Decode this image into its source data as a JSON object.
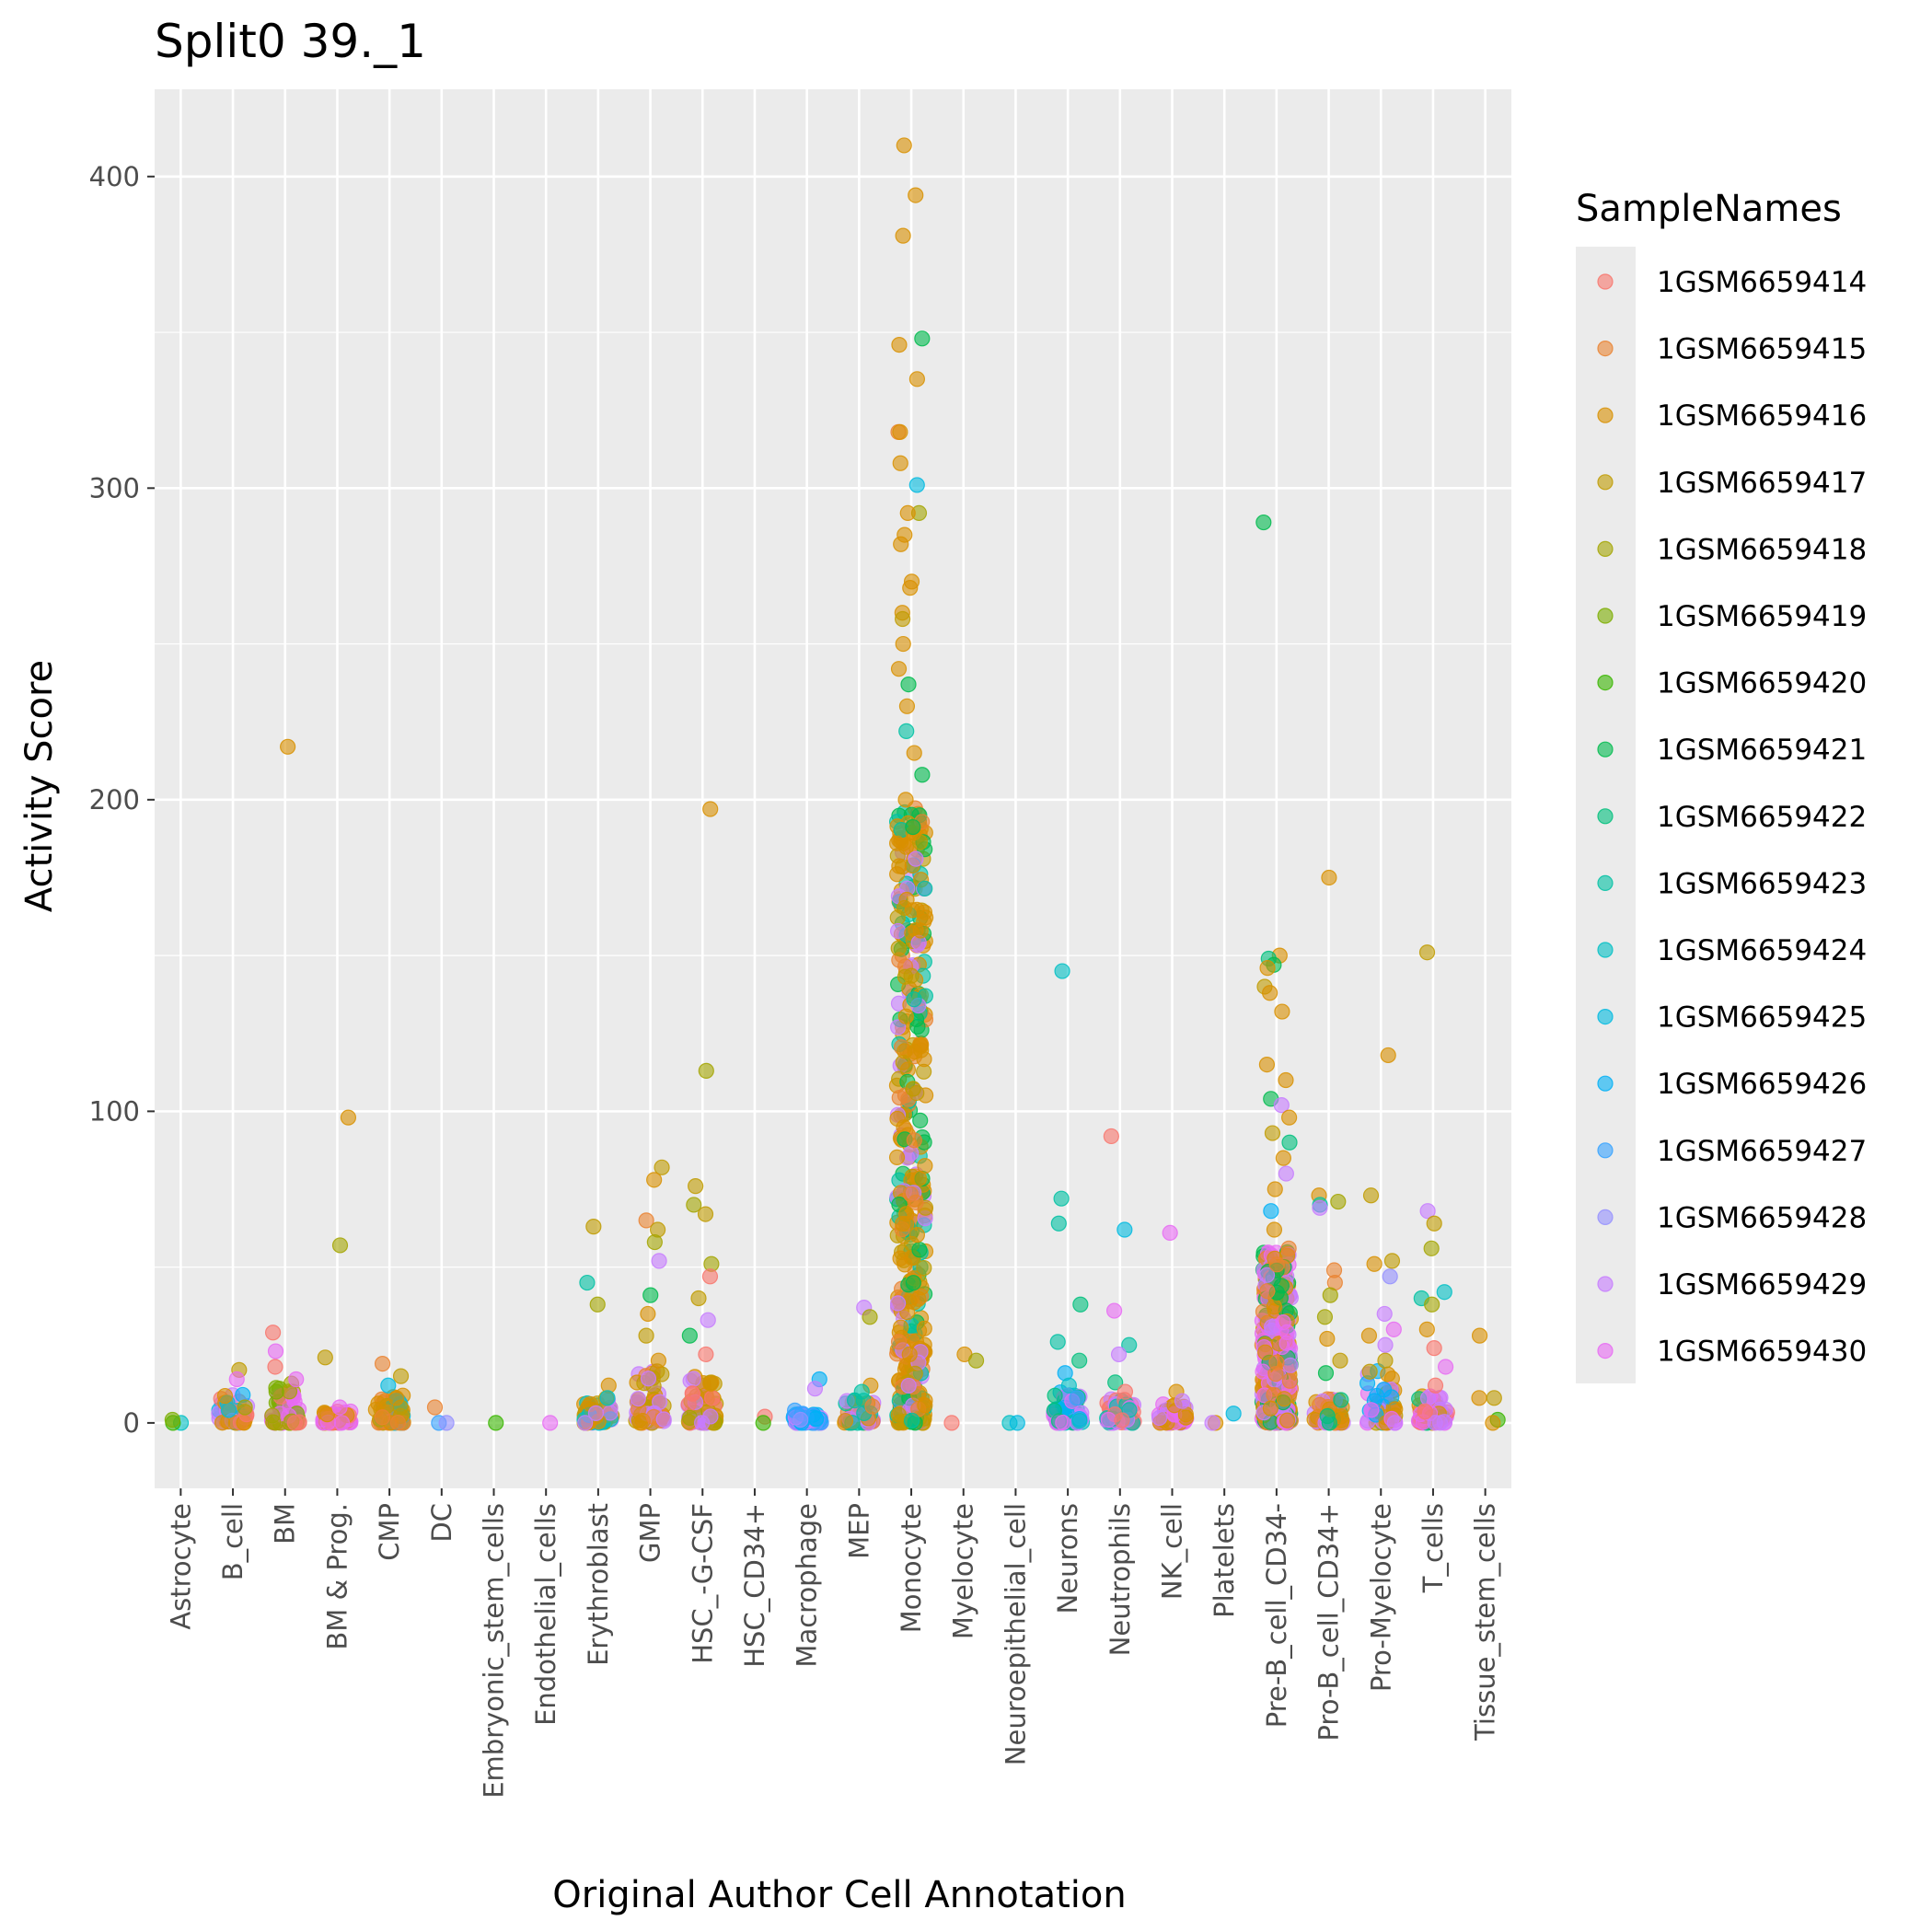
{
  "chart_data": {
    "type": "scatter",
    "title": "Split0 39._1",
    "xlabel": "Original Author Cell Annotation",
    "ylabel": "Activity Score",
    "ylim": [
      -21,
      428
    ],
    "yticks": [
      0,
      100,
      200,
      300,
      400
    ],
    "grid": true,
    "legend_position": "right",
    "legend_title": "SampleNames",
    "categories": [
      "Astrocyte",
      "B_cell",
      "BM",
      "BM & Prog.",
      "CMP",
      "DC",
      "Embryonic_stem_cells",
      "Endothelial_cells",
      "Erythroblast",
      "GMP",
      "HSC_-G-CSF",
      "HSC_CD34+",
      "Macrophage",
      "MEP",
      "Monocyte",
      "Myelocyte",
      "Neuroepithelial_cell",
      "Neurons",
      "Neutrophils",
      "NK_cell",
      "Platelets",
      "Pre-B_cell_CD34-",
      "Pro-B_cell_CD34+",
      "Pro-Myelocyte",
      "T_cells",
      "Tissue_stem_cells"
    ],
    "series": [
      {
        "name": "1GSM6659414",
        "color": "#F8766D"
      },
      {
        "name": "1GSM6659415",
        "color": "#EA8331"
      },
      {
        "name": "1GSM6659416",
        "color": "#D89000"
      },
      {
        "name": "1GSM6659417",
        "color": "#C09B00"
      },
      {
        "name": "1GSM6659418",
        "color": "#A3A500"
      },
      {
        "name": "1GSM6659419",
        "color": "#7CAE00"
      },
      {
        "name": "1GSM6659420",
        "color": "#39B600"
      },
      {
        "name": "1GSM6659421",
        "color": "#00BB4E"
      },
      {
        "name": "1GSM6659422",
        "color": "#00BF7D"
      },
      {
        "name": "1GSM6659423",
        "color": "#00C1A3"
      },
      {
        "name": "1GSM6659424",
        "color": "#00BFC4"
      },
      {
        "name": "1GSM6659425",
        "color": "#00BAE0"
      },
      {
        "name": "1GSM6659426",
        "color": "#00B0F6"
      },
      {
        "name": "1GSM6659427",
        "color": "#35A2FF"
      },
      {
        "name": "1GSM6659428",
        "color": "#9590FF"
      },
      {
        "name": "1GSM6659429",
        "color": "#C77CFF"
      },
      {
        "name": "1GSM6659430",
        "color": "#E76BF3"
      }
    ],
    "points": [
      {
        "cat": 0,
        "y": 0,
        "s": 10
      },
      {
        "cat": 0,
        "y": 0,
        "s": 6
      },
      {
        "cat": 0,
        "y": 1,
        "s": 5
      },
      {
        "cat": 1,
        "y": 17,
        "s": 3
      },
      {
        "cat": 1,
        "y": 14,
        "s": 16
      },
      {
        "cat": 1,
        "y": 9,
        "s": 12
      },
      {
        "cat": 1,
        "y": 5,
        "s": 4
      },
      {
        "cat": 2,
        "y": 217,
        "s": 2
      },
      {
        "cat": 2,
        "y": 29,
        "s": 0
      },
      {
        "cat": 2,
        "y": 23,
        "s": 16
      },
      {
        "cat": 2,
        "y": 18,
        "s": 0
      },
      {
        "cat": 2,
        "y": 14,
        "s": 16
      },
      {
        "cat": 2,
        "y": 10,
        "s": 5
      },
      {
        "cat": 3,
        "y": 98,
        "s": 2
      },
      {
        "cat": 3,
        "y": 57,
        "s": 4
      },
      {
        "cat": 3,
        "y": 21,
        "s": 3
      },
      {
        "cat": 3,
        "y": 5,
        "s": 16
      },
      {
        "cat": 4,
        "y": 19,
        "s": 1
      },
      {
        "cat": 4,
        "y": 15,
        "s": 3
      },
      {
        "cat": 4,
        "y": 12,
        "s": 11
      },
      {
        "cat": 4,
        "y": 8,
        "s": 2
      },
      {
        "cat": 5,
        "y": 5,
        "s": 1
      },
      {
        "cat": 5,
        "y": 0,
        "s": 13
      },
      {
        "cat": 5,
        "y": 0,
        "s": 14
      },
      {
        "cat": 6,
        "y": 0,
        "s": 6
      },
      {
        "cat": 7,
        "y": 0,
        "s": 16
      },
      {
        "cat": 8,
        "y": 63,
        "s": 3
      },
      {
        "cat": 8,
        "y": 45,
        "s": 9
      },
      {
        "cat": 8,
        "y": 38,
        "s": 4
      },
      {
        "cat": 8,
        "y": 12,
        "s": 2
      },
      {
        "cat": 8,
        "y": 8,
        "s": 10
      },
      {
        "cat": 9,
        "y": 82,
        "s": 3
      },
      {
        "cat": 9,
        "y": 78,
        "s": 2
      },
      {
        "cat": 9,
        "y": 65,
        "s": 1
      },
      {
        "cat": 9,
        "y": 62,
        "s": 3
      },
      {
        "cat": 9,
        "y": 58,
        "s": 4
      },
      {
        "cat": 9,
        "y": 52,
        "s": 15
      },
      {
        "cat": 9,
        "y": 41,
        "s": 7
      },
      {
        "cat": 9,
        "y": 35,
        "s": 2
      },
      {
        "cat": 9,
        "y": 28,
        "s": 3
      },
      {
        "cat": 9,
        "y": 20,
        "s": 2
      },
      {
        "cat": 10,
        "y": 197,
        "s": 2
      },
      {
        "cat": 10,
        "y": 113,
        "s": 4
      },
      {
        "cat": 10,
        "y": 76,
        "s": 3
      },
      {
        "cat": 10,
        "y": 70,
        "s": 4
      },
      {
        "cat": 10,
        "y": 67,
        "s": 3
      },
      {
        "cat": 10,
        "y": 51,
        "s": 4
      },
      {
        "cat": 10,
        "y": 47,
        "s": 0
      },
      {
        "cat": 10,
        "y": 40,
        "s": 3
      },
      {
        "cat": 10,
        "y": 33,
        "s": 15
      },
      {
        "cat": 10,
        "y": 28,
        "s": 7
      },
      {
        "cat": 10,
        "y": 22,
        "s": 0
      },
      {
        "cat": 11,
        "y": 2,
        "s": 0
      },
      {
        "cat": 11,
        "y": 0,
        "s": 6
      },
      {
        "cat": 12,
        "y": 14,
        "s": 12
      },
      {
        "cat": 12,
        "y": 11,
        "s": 15
      },
      {
        "cat": 12,
        "y": 4,
        "s": 13
      },
      {
        "cat": 12,
        "y": 1,
        "s": 14
      },
      {
        "cat": 13,
        "y": 37,
        "s": 15
      },
      {
        "cat": 13,
        "y": 34,
        "s": 4
      },
      {
        "cat": 13,
        "y": 12,
        "s": 2
      },
      {
        "cat": 13,
        "y": 10,
        "s": 9
      },
      {
        "cat": 14,
        "y": 410,
        "s": 2
      },
      {
        "cat": 14,
        "y": 394,
        "s": 2
      },
      {
        "cat": 14,
        "y": 381,
        "s": 2
      },
      {
        "cat": 14,
        "y": 348,
        "s": 7
      },
      {
        "cat": 14,
        "y": 346,
        "s": 2
      },
      {
        "cat": 14,
        "y": 335,
        "s": 2
      },
      {
        "cat": 14,
        "y": 318,
        "s": 1
      },
      {
        "cat": 14,
        "y": 318,
        "s": 2
      },
      {
        "cat": 14,
        "y": 308,
        "s": 2
      },
      {
        "cat": 14,
        "y": 301,
        "s": 11
      },
      {
        "cat": 14,
        "y": 292,
        "s": 4
      },
      {
        "cat": 14,
        "y": 292,
        "s": 2
      },
      {
        "cat": 14,
        "y": 285,
        "s": 2
      },
      {
        "cat": 14,
        "y": 282,
        "s": 2
      },
      {
        "cat": 14,
        "y": 270,
        "s": 2
      },
      {
        "cat": 14,
        "y": 268,
        "s": 2
      },
      {
        "cat": 14,
        "y": 260,
        "s": 2
      },
      {
        "cat": 14,
        "y": 258,
        "s": 3
      },
      {
        "cat": 14,
        "y": 250,
        "s": 2
      },
      {
        "cat": 14,
        "y": 242,
        "s": 2
      },
      {
        "cat": 14,
        "y": 237,
        "s": 7
      },
      {
        "cat": 14,
        "y": 230,
        "s": 2
      },
      {
        "cat": 14,
        "y": 222,
        "s": 9
      },
      {
        "cat": 14,
        "y": 215,
        "s": 2
      },
      {
        "cat": 14,
        "y": 208,
        "s": 7
      },
      {
        "cat": 14,
        "y": 200,
        "s": 2
      },
      {
        "cat": 15,
        "y": 22,
        "s": 2
      },
      {
        "cat": 15,
        "y": 20,
        "s": 4
      },
      {
        "cat": 15,
        "y": 0,
        "s": 0
      },
      {
        "cat": 16,
        "y": 0,
        "s": 10
      },
      {
        "cat": 16,
        "y": 0,
        "s": 11
      },
      {
        "cat": 17,
        "y": 145,
        "s": 10
      },
      {
        "cat": 17,
        "y": 72,
        "s": 9
      },
      {
        "cat": 17,
        "y": 64,
        "s": 9
      },
      {
        "cat": 17,
        "y": 38,
        "s": 8
      },
      {
        "cat": 17,
        "y": 26,
        "s": 9
      },
      {
        "cat": 17,
        "y": 20,
        "s": 8
      },
      {
        "cat": 17,
        "y": 16,
        "s": 12
      },
      {
        "cat": 17,
        "y": 12,
        "s": 10
      },
      {
        "cat": 17,
        "y": 8,
        "s": 13
      },
      {
        "cat": 18,
        "y": 92,
        "s": 0
      },
      {
        "cat": 18,
        "y": 62,
        "s": 11
      },
      {
        "cat": 18,
        "y": 36,
        "s": 16
      },
      {
        "cat": 18,
        "y": 25,
        "s": 9
      },
      {
        "cat": 18,
        "y": 22,
        "s": 15
      },
      {
        "cat": 18,
        "y": 13,
        "s": 8
      },
      {
        "cat": 18,
        "y": 10,
        "s": 0
      },
      {
        "cat": 19,
        "y": 61,
        "s": 16
      },
      {
        "cat": 19,
        "y": 10,
        "s": 2
      },
      {
        "cat": 19,
        "y": 7,
        "s": 15
      },
      {
        "cat": 20,
        "y": 3,
        "s": 11
      },
      {
        "cat": 20,
        "y": 0,
        "s": 2
      },
      {
        "cat": 20,
        "y": 0,
        "s": 15
      },
      {
        "cat": 21,
        "y": 289,
        "s": 7
      },
      {
        "cat": 21,
        "y": 150,
        "s": 2
      },
      {
        "cat": 21,
        "y": 149,
        "s": 8
      },
      {
        "cat": 21,
        "y": 147,
        "s": 7
      },
      {
        "cat": 21,
        "y": 146,
        "s": 2
      },
      {
        "cat": 21,
        "y": 140,
        "s": 3
      },
      {
        "cat": 21,
        "y": 138,
        "s": 2
      },
      {
        "cat": 21,
        "y": 132,
        "s": 2
      },
      {
        "cat": 21,
        "y": 115,
        "s": 2
      },
      {
        "cat": 21,
        "y": 110,
        "s": 2
      },
      {
        "cat": 21,
        "y": 104,
        "s": 7
      },
      {
        "cat": 21,
        "y": 102,
        "s": 15
      },
      {
        "cat": 21,
        "y": 98,
        "s": 2
      },
      {
        "cat": 21,
        "y": 93,
        "s": 3
      },
      {
        "cat": 21,
        "y": 90,
        "s": 8
      },
      {
        "cat": 21,
        "y": 85,
        "s": 2
      },
      {
        "cat": 21,
        "y": 80,
        "s": 15
      },
      {
        "cat": 21,
        "y": 75,
        "s": 2
      },
      {
        "cat": 21,
        "y": 68,
        "s": 12
      },
      {
        "cat": 21,
        "y": 62,
        "s": 2
      },
      {
        "cat": 21,
        "y": 56,
        "s": 1
      },
      {
        "cat": 22,
        "y": 175,
        "s": 2
      },
      {
        "cat": 22,
        "y": 73,
        "s": 2
      },
      {
        "cat": 22,
        "y": 71,
        "s": 4
      },
      {
        "cat": 22,
        "y": 70,
        "s": 9
      },
      {
        "cat": 22,
        "y": 69,
        "s": 15
      },
      {
        "cat": 22,
        "y": 49,
        "s": 1
      },
      {
        "cat": 22,
        "y": 45,
        "s": 1
      },
      {
        "cat": 22,
        "y": 41,
        "s": 4
      },
      {
        "cat": 22,
        "y": 34,
        "s": 4
      },
      {
        "cat": 22,
        "y": 27,
        "s": 2
      },
      {
        "cat": 22,
        "y": 20,
        "s": 3
      },
      {
        "cat": 22,
        "y": 16,
        "s": 7
      },
      {
        "cat": 23,
        "y": 118,
        "s": 2
      },
      {
        "cat": 23,
        "y": 73,
        "s": 3
      },
      {
        "cat": 23,
        "y": 52,
        "s": 3
      },
      {
        "cat": 23,
        "y": 51,
        "s": 2
      },
      {
        "cat": 23,
        "y": 47,
        "s": 14
      },
      {
        "cat": 23,
        "y": 35,
        "s": 15
      },
      {
        "cat": 23,
        "y": 30,
        "s": 16
      },
      {
        "cat": 23,
        "y": 28,
        "s": 2
      },
      {
        "cat": 23,
        "y": 25,
        "s": 15
      },
      {
        "cat": 23,
        "y": 20,
        "s": 3
      },
      {
        "cat": 24,
        "y": 151,
        "s": 3
      },
      {
        "cat": 24,
        "y": 68,
        "s": 15
      },
      {
        "cat": 24,
        "y": 64,
        "s": 3
      },
      {
        "cat": 24,
        "y": 56,
        "s": 4
      },
      {
        "cat": 24,
        "y": 42,
        "s": 10
      },
      {
        "cat": 24,
        "y": 40,
        "s": 9
      },
      {
        "cat": 24,
        "y": 38,
        "s": 4
      },
      {
        "cat": 24,
        "y": 30,
        "s": 2
      },
      {
        "cat": 24,
        "y": 24,
        "s": 0
      },
      {
        "cat": 24,
        "y": 18,
        "s": 16
      },
      {
        "cat": 24,
        "y": 12,
        "s": 0
      },
      {
        "cat": 25,
        "y": 28,
        "s": 2
      },
      {
        "cat": 25,
        "y": 8,
        "s": 2
      },
      {
        "cat": 25,
        "y": 8,
        "s": 3
      },
      {
        "cat": 25,
        "y": 1,
        "s": 6
      },
      {
        "cat": 25,
        "y": 0,
        "s": 2
      }
    ],
    "dense_columns": [
      {
        "cat": 1,
        "max": 9,
        "s": [
          0,
          2,
          11,
          15
        ]
      },
      {
        "cat": 2,
        "max": 14,
        "s": [
          0,
          4,
          5,
          16
        ]
      },
      {
        "cat": 3,
        "max": 4,
        "s": [
          0,
          2,
          16
        ]
      },
      {
        "cat": 4,
        "max": 9,
        "s": [
          1,
          2,
          3,
          11
        ]
      },
      {
        "cat": 8,
        "max": 8,
        "s": [
          2,
          3,
          10,
          15
        ]
      },
      {
        "cat": 9,
        "max": 18,
        "s": [
          1,
          2,
          3,
          15
        ]
      },
      {
        "cat": 10,
        "max": 16,
        "s": [
          0,
          2,
          3,
          4,
          15
        ]
      },
      {
        "cat": 12,
        "max": 3,
        "s": [
          12,
          13,
          15
        ]
      },
      {
        "cat": 13,
        "max": 8,
        "s": [
          1,
          2,
          9,
          15
        ]
      },
      {
        "cat": 14,
        "max": 200,
        "s": [
          2,
          2,
          2,
          2,
          1,
          3,
          7,
          9,
          15
        ]
      },
      {
        "cat": 17,
        "max": 10,
        "s": [
          8,
          9,
          10,
          12,
          15,
          16
        ]
      },
      {
        "cat": 18,
        "max": 8,
        "s": [
          0,
          9,
          15,
          16
        ]
      },
      {
        "cat": 19,
        "max": 6,
        "s": [
          2,
          15,
          16
        ]
      },
      {
        "cat": 21,
        "max": 55,
        "s": [
          1,
          2,
          7,
          15,
          16
        ]
      },
      {
        "cat": 22,
        "max": 8,
        "s": [
          1,
          2,
          8,
          15
        ]
      },
      {
        "cat": 23,
        "max": 18,
        "s": [
          2,
          3,
          12,
          15,
          16
        ]
      },
      {
        "cat": 24,
        "max": 10,
        "s": [
          0,
          2,
          8,
          15,
          16
        ]
      }
    ]
  }
}
